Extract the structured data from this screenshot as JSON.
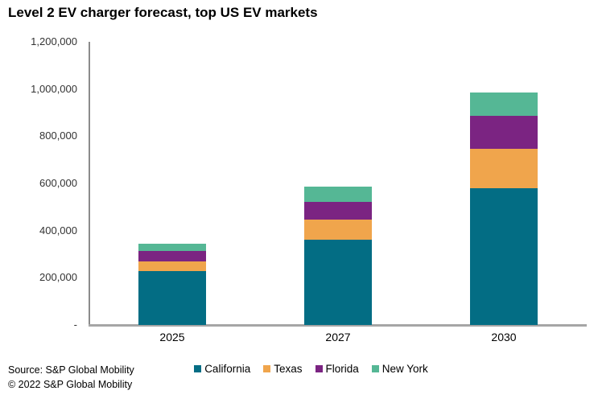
{
  "title": "Level 2 EV charger forecast, top US EV markets",
  "footer": {
    "source_line1": "Source: S&P Global Mobility",
    "source_line2": "© 2022 S&P Global Mobility"
  },
  "chart_data": {
    "type": "bar",
    "stacked": true,
    "title": "Level 2 EV charger forecast, top US EV markets",
    "categories": [
      "2025",
      "2027",
      "2030"
    ],
    "series": [
      {
        "name": "California",
        "color": "#036d84",
        "values": [
          230000,
          360000,
          580000
        ]
      },
      {
        "name": "Texas",
        "color": "#f0a54c",
        "values": [
          40000,
          88000,
          168000
        ]
      },
      {
        "name": "Florida",
        "color": "#7b2482",
        "values": [
          42000,
          75000,
          137000
        ]
      },
      {
        "name": "New York",
        "color": "#55b795",
        "values": [
          31000,
          62000,
          100000
        ]
      }
    ],
    "xlabel": "",
    "ylabel": "",
    "ylim": [
      0,
      1200000
    ],
    "ytick_interval": 200000,
    "ytick_labels": [
      "-",
      "200,000",
      "400,000",
      "600,000",
      "800,000",
      "1,000,000",
      "1,200,000"
    ],
    "grid": false,
    "legend_position": "bottom",
    "axis_colors": {
      "y_axis_line": "#8c8c8c",
      "x_axis_line": "#a6a6a6"
    }
  }
}
